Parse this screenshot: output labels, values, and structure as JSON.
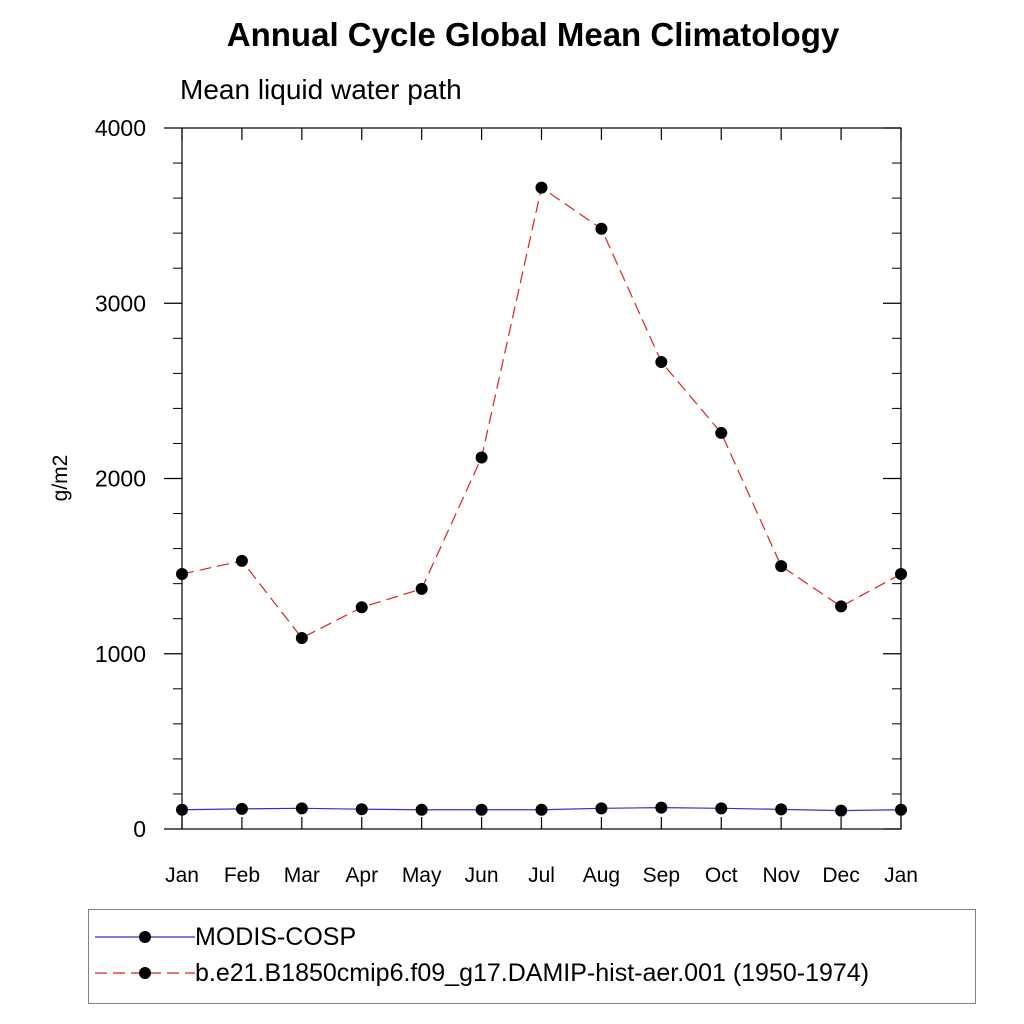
{
  "chart_data": {
    "type": "line",
    "title": "Annual Cycle Global Mean Climatology",
    "subtitle": "Mean liquid water path",
    "xlabel": "",
    "ylabel": "g/m2",
    "categories": [
      "Jan",
      "Feb",
      "Mar",
      "Apr",
      "May",
      "Jun",
      "Jul",
      "Aug",
      "Sep",
      "Oct",
      "Nov",
      "Dec",
      "Jan"
    ],
    "ylim": [
      0,
      4000
    ],
    "yticks": [
      "0",
      "1000",
      "2000",
      "3000",
      "4000"
    ],
    "series": [
      {
        "name": "MODIS-COSP",
        "color": "#3030d0",
        "line_style": "solid",
        "marker": "filled-circle",
        "values": [
          110,
          115,
          118,
          113,
          110,
          110,
          110,
          118,
          122,
          118,
          112,
          105,
          110
        ]
      },
      {
        "name": "b.e21.B1850cmip6.f09_g17.DAMIP-hist-aer.001 (1950-1974)",
        "color": "#e02020",
        "line_style": "dashed",
        "marker": "filled-circle",
        "values": [
          1455,
          1530,
          1090,
          1265,
          1370,
          2120,
          3660,
          3425,
          2665,
          2260,
          1500,
          1270,
          1455
        ]
      }
    ],
    "legend_position": "bottom"
  }
}
